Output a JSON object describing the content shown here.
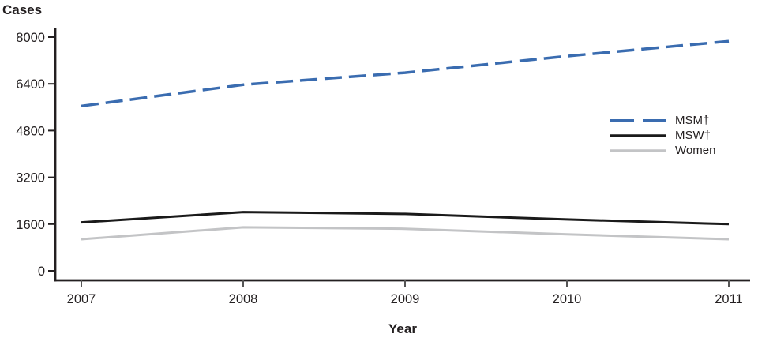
{
  "chart_data": {
    "type": "line",
    "title": "",
    "ylabel": "Cases",
    "xlabel": "Year",
    "x": [
      "2007",
      "2008",
      "2009",
      "2010",
      "2011"
    ],
    "y_ticks": [
      0,
      1600,
      3200,
      4800,
      6400,
      8000
    ],
    "ylim": [
      0,
      8000
    ],
    "grid": false,
    "legend_position": "right-inside",
    "series": [
      {
        "name": "MSM†",
        "values": [
          5640,
          6370,
          6780,
          7350,
          7860
        ],
        "color": "#3a6cb0",
        "style": "dashed",
        "width": 3.5
      },
      {
        "name": "MSW†",
        "values": [
          1660,
          2010,
          1950,
          1760,
          1600
        ],
        "color": "#1a1a1a",
        "style": "solid",
        "width": 3
      },
      {
        "name": "Women",
        "values": [
          1080,
          1490,
          1440,
          1250,
          1080
        ],
        "color": "#c3c4c6",
        "style": "solid",
        "width": 3
      }
    ]
  }
}
